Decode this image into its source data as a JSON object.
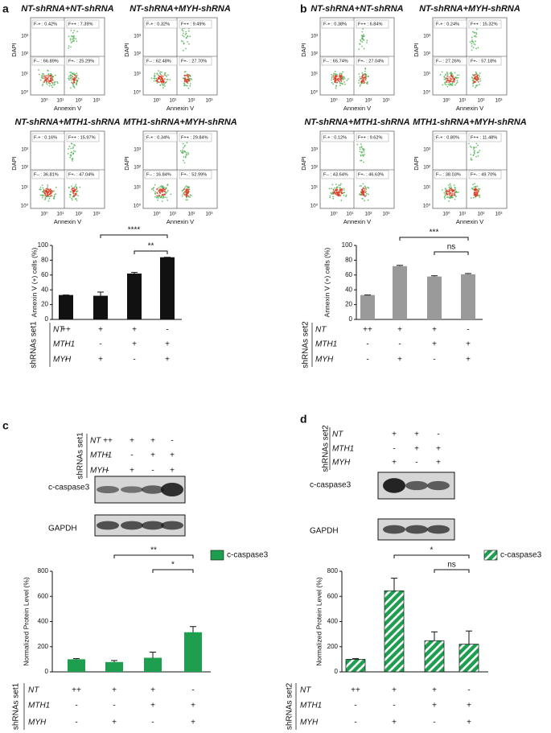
{
  "panel_labels": [
    "a",
    "b",
    "c",
    "d"
  ],
  "flow_axes": {
    "x_label": "Annexin V",
    "y_label": "DAPI",
    "ticks": [
      "10⁰",
      "10¹",
      "10²",
      "10³"
    ]
  },
  "flow": [
    {
      "plots": [
        {
          "title": "NT-shRNA+NT-shRNA",
          "quadrants": [
            "F-+ : 0.42%",
            "F++ : 7.39%",
            "F-- : 66.89%",
            "F+- : 25.29%"
          ]
        },
        {
          "title": "NT-shRNA+MYH-shRNA",
          "quadrants": [
            "F-+ : 0.32%",
            "F++ : 9.49%",
            "F-- : 62.48%",
            "F+- : 27.70%"
          ]
        },
        {
          "title": "NT-shRNA+MTH1-shRNA",
          "quadrants": [
            "F-+ : 0.16%",
            "F++ : 15.97%",
            "F-- : 36.81%",
            "F+- : 47.04%"
          ]
        },
        {
          "title": "MTH1-shRNA+MYH-shRNA",
          "quadrants": [
            "F-+ : 0.34%",
            "F++ : 29.84%",
            "F-- : 16.84%",
            "F+- : 52.99%"
          ]
        }
      ]
    },
    {
      "plots": [
        {
          "title": "NT-shRNA+NT-shRNA",
          "quadrants": [
            "F-+ : 0.38%",
            "F++ : 6.84%",
            "F-- : 65.74%",
            "F+- : 27.04%"
          ]
        },
        {
          "title": "NT-shRNA+MYH-shRNA",
          "quadrants": [
            "F-+ : 0.24%",
            "F++ : 15.32%",
            "F-- : 27.26%",
            "F+- : 57.18%"
          ]
        },
        {
          "title": "NT-shRNA+MTH1-shRNA",
          "quadrants": [
            "F-+ : 0.12%",
            "F++ : 9.62%",
            "F-- : 43.64%",
            "F+- : 46.63%"
          ]
        },
        {
          "title": "MTH1-shRNA+MYH-shRNA",
          "quadrants": [
            "F-+ : 0.80%",
            "F++ : 11.48%",
            "F-- : 38.03%",
            "F+- : 49.70%"
          ]
        }
      ]
    }
  ],
  "blots": [
    {
      "conditions": {
        "label": "shRNAs set1",
        "rows": [
          {
            "name": "NT",
            "cells": [
              "++",
              "+",
              "+",
              "-"
            ]
          },
          {
            "name": "MTH1",
            "cells": [
              "-",
              "-",
              "+",
              "+"
            ]
          },
          {
            "name": "MYH",
            "cells": [
              "-",
              "+",
              "-",
              "+"
            ]
          }
        ]
      },
      "bands": [
        "c-caspase3",
        "GAPDH"
      ]
    },
    {
      "conditions": {
        "label": "shRNAs set2",
        "rows": [
          {
            "name": "NT",
            "cells": [
              "+",
              "+",
              "-"
            ]
          },
          {
            "name": "MTH1",
            "cells": [
              "-",
              "+",
              "+"
            ]
          },
          {
            "name": "MYH",
            "cells": [
              "+",
              "-",
              "+"
            ]
          }
        ]
      },
      "bands": [
        "c-caspase3",
        "GAPDH"
      ]
    }
  ],
  "chart_data": [
    {
      "type": "bar",
      "ylabel": "Annexin V (+) cells (%)",
      "ylim": [
        0,
        100
      ],
      "yticks": [
        0,
        20,
        40,
        60,
        80,
        100
      ],
      "values": [
        33,
        32,
        62,
        84
      ],
      "errors": [
        0,
        5,
        1.5,
        0
      ],
      "color": "#111111",
      "significance": [
        {
          "label": "****",
          "from": 1,
          "to": 3
        },
        {
          "label": "**",
          "from": 2,
          "to": 3
        }
      ],
      "conditions": {
        "label": "shRNAs set1",
        "rows": [
          {
            "name": "NT",
            "cells": [
              "++",
              "+",
              "+",
              "-"
            ]
          },
          {
            "name": "MTH1",
            "cells": [
              "-",
              "-",
              "+",
              "+"
            ]
          },
          {
            "name": "MYH",
            "cells": [
              "-",
              "+",
              "-",
              "+"
            ]
          }
        ]
      }
    },
    {
      "type": "bar",
      "ylabel": "Annexin V (+) cells (%)",
      "ylim": [
        0,
        100
      ],
      "yticks": [
        0,
        20,
        40,
        60,
        80,
        100
      ],
      "values": [
        33,
        72,
        58,
        61
      ],
      "errors": [
        0,
        1,
        1,
        1
      ],
      "color": "#9a9a9a",
      "significance": [
        {
          "label": "***",
          "from": 1,
          "to": 3
        },
        {
          "label": "ns",
          "from": 2,
          "to": 3
        }
      ],
      "conditions": {
        "label": "shRNAs set2",
        "rows": [
          {
            "name": "NT",
            "cells": [
              "++",
              "+",
              "+",
              "-"
            ]
          },
          {
            "name": "MTH1",
            "cells": [
              "-",
              "-",
              "+",
              "+"
            ]
          },
          {
            "name": "MYH",
            "cells": [
              "-",
              "+",
              "-",
              "+"
            ]
          }
        ]
      }
    },
    {
      "type": "bar",
      "ylabel": "Normalized Protein Level (%)",
      "ylim": [
        0,
        800
      ],
      "yticks": [
        0,
        200,
        400,
        600,
        800
      ],
      "values": [
        100,
        78,
        112,
        315
      ],
      "errors": [
        5,
        12,
        45,
        45
      ],
      "color": "#1e9e4f",
      "legend": "c-caspase3",
      "significance": [
        {
          "label": "**",
          "from": 1,
          "to": 3
        },
        {
          "label": "*",
          "from": 2,
          "to": 3
        }
      ],
      "conditions": {
        "label": "shRNAs set1",
        "rows": [
          {
            "name": "NT",
            "cells": [
              "++",
              "+",
              "+",
              "-"
            ]
          },
          {
            "name": "MTH1",
            "cells": [
              "-",
              "-",
              "+",
              "+"
            ]
          },
          {
            "name": "MYH",
            "cells": [
              "-",
              "+",
              "-",
              "+"
            ]
          }
        ]
      }
    },
    {
      "type": "bar",
      "ylabel": "Normalized Protein Level (%)",
      "ylim": [
        0,
        800
      ],
      "yticks": [
        0,
        200,
        400,
        600,
        800
      ],
      "values": [
        100,
        645,
        248,
        220
      ],
      "errors": [
        5,
        100,
        70,
        105
      ],
      "color": "#1e9e4f",
      "hatch": true,
      "legend": "c-caspase3",
      "significance": [
        {
          "label": "*",
          "from": 1,
          "to": 3
        },
        {
          "label": "ns",
          "from": 2,
          "to": 3
        }
      ],
      "conditions": {
        "label": "shRNAs set2",
        "rows": [
          {
            "name": "NT",
            "cells": [
              "++",
              "+",
              "+",
              "-"
            ]
          },
          {
            "name": "MTH1",
            "cells": [
              "-",
              "-",
              "+",
              "+"
            ]
          },
          {
            "name": "MYH",
            "cells": [
              "-",
              "+",
              "-",
              "+"
            ]
          }
        ]
      }
    }
  ]
}
